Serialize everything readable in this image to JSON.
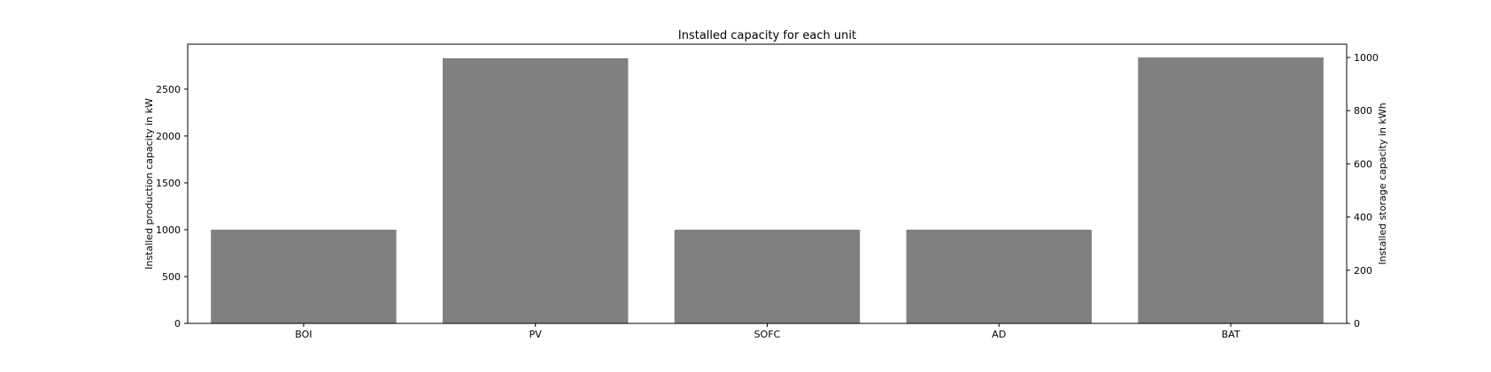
{
  "chart_data": {
    "type": "bar",
    "title": "Installed capacity for each unit",
    "xlabel": "",
    "ylabel": "Installed production capacity in kW",
    "ylabel_right": "Installed storage capacity in kWh",
    "categories": [
      "BOI",
      "PV",
      "SOFC",
      "AD",
      "BAT"
    ],
    "series": [
      {
        "axis": "left",
        "values": [
          1000,
          2830,
          1000,
          1000,
          null
        ]
      },
      {
        "axis": "right",
        "values": [
          null,
          null,
          null,
          null,
          1000
        ]
      }
    ],
    "ylim": [
      0,
      2980
    ],
    "ylim_right": [
      0,
      1050
    ],
    "yticks": [
      0,
      500,
      1000,
      1500,
      2000,
      2500
    ],
    "yticks_right": [
      0,
      200,
      400,
      600,
      800,
      1000
    ],
    "bar_color": "#808080",
    "grid": false,
    "legend": "none"
  }
}
